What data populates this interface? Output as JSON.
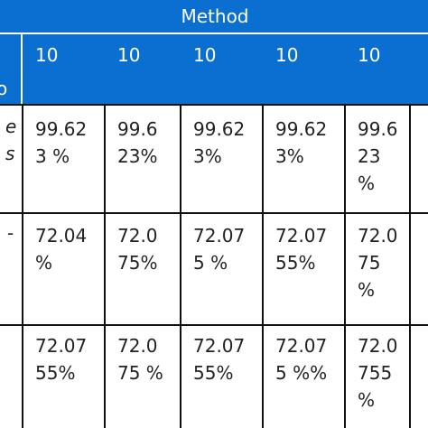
{
  "table": {
    "method_header": "Method",
    "column_headers": [
      "10",
      "10",
      "10",
      "10",
      "10"
    ],
    "left_clipped_header": "o",
    "left_clipped_rows": [
      [
        "e",
        "s"
      ],
      [
        "-"
      ],
      []
    ],
    "rows": [
      {
        "cells": [
          [
            "99.62",
            "3 %"
          ],
          [
            "99.6",
            "23%"
          ],
          [
            "99.62",
            "3%"
          ],
          [
            "99.62",
            "3%"
          ],
          [
            "99.6",
            "23",
            "%"
          ]
        ]
      },
      {
        "cells": [
          [
            "72.04",
            "%"
          ],
          [
            "72.0",
            "75%"
          ],
          [
            "72.07",
            "5 %"
          ],
          [
            "72.07",
            "55%"
          ],
          [
            "72.0",
            "75",
            "%"
          ]
        ]
      },
      {
        "cells": [
          [
            "72.07",
            "55%"
          ],
          [
            "72.0",
            "75 %"
          ],
          [
            "72.07",
            "55%"
          ],
          [
            "72.07",
            "5 %%"
          ],
          [
            "72.0",
            "755",
            "%"
          ]
        ]
      }
    ]
  },
  "colors": {
    "header_background": "#0a6fd0",
    "header_text": "#ffffff",
    "grid_lines": "#111111",
    "cell_text": "#222222"
  }
}
